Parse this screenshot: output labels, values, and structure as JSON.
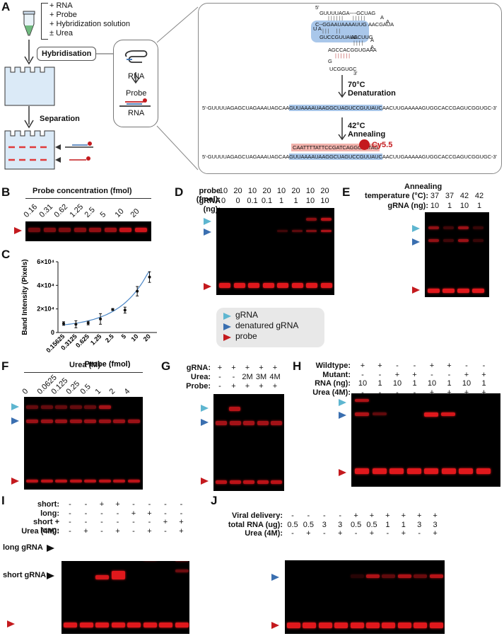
{
  "panel_letters": {
    "a": "A",
    "b": "B",
    "c": "C",
    "d": "D",
    "e": "E",
    "f": "F",
    "g": "G",
    "h": "H",
    "i": "I",
    "j": "J"
  },
  "panel_a": {
    "reagents": [
      "+ RNA",
      "+ Probe",
      "+ Hybridization solution",
      "± Urea"
    ],
    "hybridisation": "Hybridisation",
    "separation": "Separation",
    "rna_label": "RNA",
    "probe_label": "Probe",
    "rna_label2": "RNA",
    "hairpin": {
      "five": "5'",
      "l1": "GUUUUAGA----GCUAG",
      "l1b": "A",
      "l2": "C--GGAAUAAAAUUG",
      "l2b": "AACGAUA",
      "l2c": "A",
      "l3": "GUCCGUUAUC",
      "l3b": "AACUUG",
      "l3c": "A",
      "loop": "U A",
      "l4": "AGCCACGGUGAAA",
      "l4b": "A",
      "l5": "G",
      "l6": "UCGGUGC",
      "three": "3'"
    },
    "step1_temp": "70°C",
    "step1_name": "Denaturation",
    "step2_temp": "42°C",
    "step2_name": "Annealing",
    "linear_prefix": "5'-GUUUUAGAGCUAGAAAUAGCAA",
    "linear_hl": "GUUAAAAUAAGGCUAGUCCGUUAUC",
    "linear_suffix": "AACUUGAAAAAGUGGCACCGAGUCGGUGC-3'",
    "probe_seq": "CAATTTTATTCCGATCAGGCAATAG",
    "cy_label": "Cy5.5"
  },
  "panel_b": {
    "title": "Probe concentration (fmol)",
    "lanes": [
      "0.16",
      "0.31",
      "0.62",
      "1.25",
      "2.5",
      "5",
      "10",
      "20"
    ]
  },
  "chart_data": {
    "type": "scatter",
    "title": "",
    "xlabel": "Probe (fmol)",
    "ylabel": "Band Intensity (Pixels)",
    "categories": [
      "0.15625",
      "0.3125",
      "0.625",
      "1.25",
      "2.5",
      "5",
      "10",
      "20"
    ],
    "values": [
      7600,
      7000,
      8000,
      11500,
      19500,
      19000,
      35000,
      47000
    ],
    "errors": [
      1500,
      3000,
      1500,
      4500,
      800,
      2500,
      4000,
      4500
    ],
    "ylim": [
      0,
      60000
    ],
    "yticks": [
      "0",
      "2×10⁴",
      "4×10⁴",
      "6×10⁴"
    ],
    "fit": "exponential"
  },
  "panel_d": {
    "row1_label": "probe (fmol):",
    "row2_label": "gRNA (ng):",
    "row1": [
      "10",
      "20",
      "10",
      "20",
      "10",
      "20",
      "10",
      "20"
    ],
    "row2": [
      "0",
      "0",
      "0.1",
      "0.1",
      "1",
      "1",
      "10",
      "10"
    ]
  },
  "legend": {
    "items": [
      "gRNA",
      "denatured gRNA",
      "probe"
    ],
    "colors": [
      "#5eb6d0",
      "#3a6fb0",
      "#c41a1e"
    ]
  },
  "panel_e": {
    "title1": "Annealing",
    "row1_label": "temperature (°C):",
    "row2_label": "gRNA (ng):",
    "row1": [
      "37",
      "37",
      "42",
      "42"
    ],
    "row2": [
      "10",
      "1",
      "10",
      "1"
    ]
  },
  "panel_f": {
    "title": "Urea (M)",
    "lanes": [
      "0",
      "0.0625",
      "0.125",
      "0.25",
      "0.5",
      "1",
      "2",
      "4"
    ]
  },
  "panel_g": {
    "row_labels": [
      "gRNA:",
      "Urea:",
      "Probe:"
    ],
    "rows": [
      [
        "+",
        "+",
        "+",
        "+",
        "+"
      ],
      [
        "-",
        "-",
        "2M",
        "3M",
        "4M"
      ],
      [
        "-",
        "+",
        "+",
        "+",
        "+"
      ]
    ]
  },
  "panel_h": {
    "row_labels": [
      "Wildtype:",
      "Mutant:",
      "RNA (ng):",
      "Urea (4M):"
    ],
    "rows": [
      [
        "+",
        "+",
        "-",
        "-",
        "+",
        "+",
        "-",
        "-"
      ],
      [
        "-",
        "-",
        "+",
        "+",
        "-",
        "-",
        "+",
        "+"
      ],
      [
        "10",
        "1",
        "10",
        "1",
        "10",
        "1",
        "10",
        "1"
      ],
      [
        "-",
        "-",
        "-",
        "-",
        "+",
        "+",
        "+",
        "+"
      ]
    ]
  },
  "panel_i": {
    "row_labels": [
      "short:",
      "long:",
      "short + long:",
      "Urea (4M):"
    ],
    "rows": [
      [
        "-",
        "-",
        "+",
        "+",
        "-",
        "-",
        "-",
        "-"
      ],
      [
        "-",
        "-",
        "-",
        "-",
        "+",
        "+",
        "-",
        "-"
      ],
      [
        "-",
        "-",
        "-",
        "-",
        "-",
        "-",
        "+",
        "+"
      ],
      [
        "-",
        "+",
        "-",
        "+",
        "-",
        "+",
        "-",
        "+"
      ]
    ],
    "long_label": "long gRNA",
    "short_label": "short gRNA"
  },
  "panel_j": {
    "row_labels": [
      "Viral delivery:",
      "total RNA (ug):",
      "Urea (4M):"
    ],
    "rows": [
      [
        "-",
        "-",
        "-",
        "-",
        "+",
        "+",
        "+",
        "+",
        "+",
        "+"
      ],
      [
        "0.5",
        "0.5",
        "3",
        "3",
        "0.5",
        "0.5",
        "1",
        "1",
        "3",
        "3"
      ],
      [
        "-",
        "+",
        "-",
        "+",
        "-",
        "+",
        "-",
        "+",
        "-",
        "+"
      ]
    ]
  }
}
